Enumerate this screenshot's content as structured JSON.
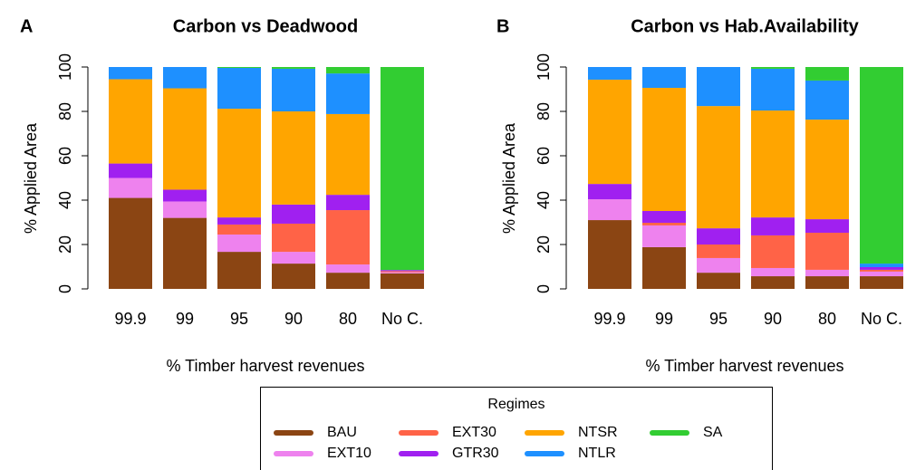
{
  "chart_data": [
    {
      "type": "bar",
      "stacked": true,
      "panel_label": "A",
      "title": "Carbon vs Deadwood",
      "xlabel": "% Timber harvest revenues",
      "ylabel": "% Applied Area",
      "categories": [
        "99.9",
        "99",
        "95",
        "90",
        "80",
        "No C."
      ],
      "ylim": [
        0,
        100
      ],
      "yticks": [
        0,
        20,
        40,
        60,
        80,
        100
      ],
      "series": [
        {
          "name": "BAU",
          "color": "#8b4513",
          "values": [
            41,
            32,
            16.7,
            11.4,
            7.3,
            7
          ]
        },
        {
          "name": "EXT10",
          "color": "#ee82ee",
          "values": [
            9,
            7.4,
            7.8,
            5.3,
            3.7,
            0.5
          ]
        },
        {
          "name": "EXT30",
          "color": "#ff6347",
          "values": [
            0,
            0,
            4.5,
            12.7,
            24.5,
            0.5
          ]
        },
        {
          "name": "GTR30",
          "color": "#a020f0",
          "values": [
            6.5,
            5.3,
            3.2,
            8.6,
            6.9,
            0.5
          ]
        },
        {
          "name": "NTSR",
          "color": "#ffa500",
          "values": [
            38,
            45.7,
            49,
            42,
            36.4,
            0
          ]
        },
        {
          "name": "NTLR",
          "color": "#1e90ff",
          "values": [
            5.5,
            9.6,
            18.4,
            19.2,
            18.3,
            0
          ]
        },
        {
          "name": "SA",
          "color": "#32cd32",
          "values": [
            0,
            0,
            0.4,
            0.8,
            2.9,
            91.5
          ]
        }
      ]
    },
    {
      "type": "bar",
      "stacked": true,
      "panel_label": "B",
      "title": "Carbon vs Hab.Availability",
      "xlabel": "% Timber harvest revenues",
      "ylabel": "% Applied Area",
      "categories": [
        "99.9",
        "99",
        "95",
        "90",
        "80",
        "No C."
      ],
      "ylim": [
        0,
        100
      ],
      "yticks": [
        0,
        20,
        40,
        60,
        80,
        100
      ],
      "series": [
        {
          "name": "BAU",
          "color": "#8b4513",
          "values": [
            31,
            18.8,
            7.3,
            5.7,
            5.7,
            5.7
          ]
        },
        {
          "name": "EXT10",
          "color": "#ee82ee",
          "values": [
            9.4,
            9.8,
            6.6,
            3.7,
            2.9,
            2.1
          ]
        },
        {
          "name": "EXT30",
          "color": "#ff6347",
          "values": [
            0,
            1.2,
            6.1,
            14.7,
            16.7,
            0.8
          ]
        },
        {
          "name": "GTR30",
          "color": "#a020f0",
          "values": [
            6.9,
            5.3,
            7.3,
            8.1,
            6.1,
            1.2
          ]
        },
        {
          "name": "NTSR",
          "color": "#ffa500",
          "values": [
            47,
            55.5,
            55.1,
            48.2,
            44.9,
            0
          ]
        },
        {
          "name": "NTLR",
          "color": "#1e90ff",
          "values": [
            5.7,
            9.4,
            17.6,
            18.8,
            17.6,
            1.6
          ]
        },
        {
          "name": "SA",
          "color": "#32cd32",
          "values": [
            0,
            0,
            0,
            0.8,
            6.1,
            88.6
          ]
        }
      ]
    }
  ],
  "legend": {
    "title": "Regimes"
  }
}
